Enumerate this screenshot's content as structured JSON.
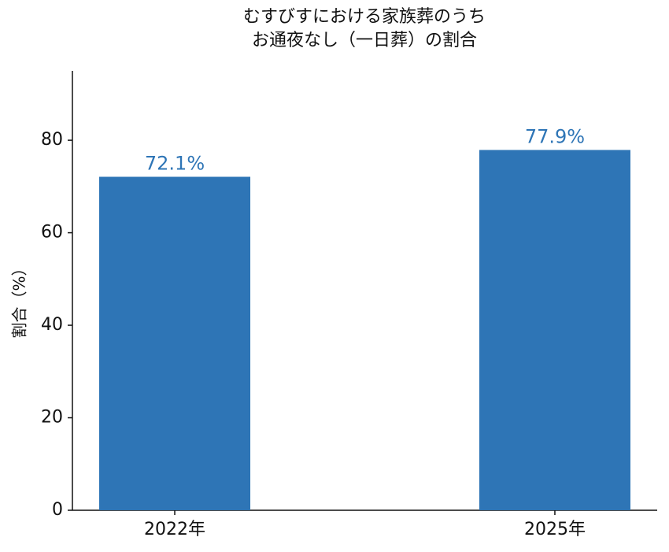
{
  "chart_data": {
    "type": "bar",
    "title": [
      "むすびすにおける家族葬のうち",
      "お通夜なし（一日葬）の割合"
    ],
    "y_label": "割合（%）",
    "categories": [
      "2022年",
      "2025年"
    ],
    "values": [
      72.1,
      77.9
    ],
    "value_labels": [
      "72.1%",
      "77.9%"
    ],
    "color": "#2e75b6",
    "ylim": [
      0,
      95
    ],
    "yticks": [
      0,
      20,
      40,
      60,
      80
    ],
    "grid": false
  }
}
